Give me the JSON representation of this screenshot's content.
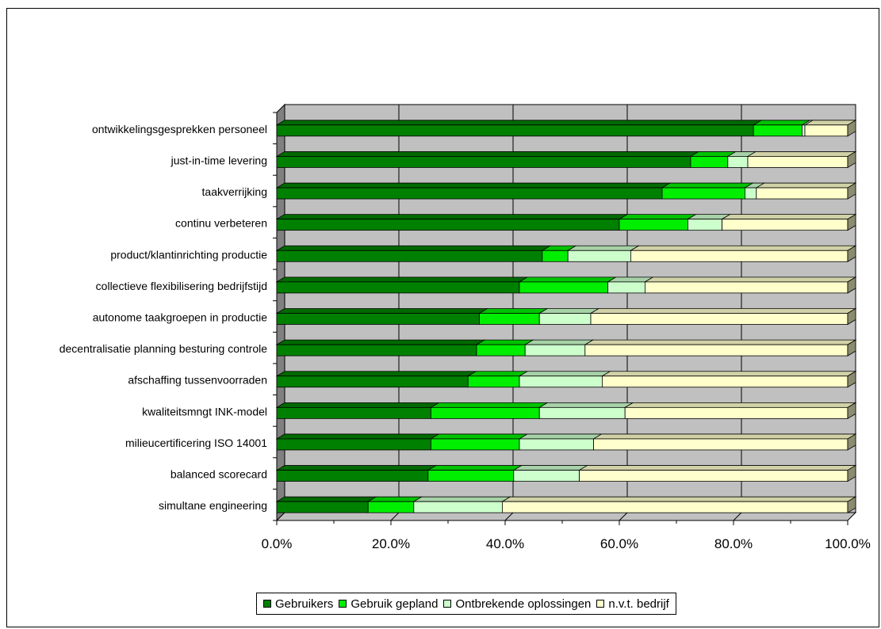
{
  "chart_data": {
    "type": "bar",
    "orientation": "horizontal",
    "stacked": true,
    "percent": true,
    "three_d": true,
    "categories": [
      "ontwikkelingsgesprekken personeel",
      "just-in-time levering",
      "taakverrijking",
      "continu verbeteren",
      "product/klantinrichting productie",
      "collectieve flexibilisering bedrijfstijd",
      "autonome taakgroepen in productie",
      "decentralisatie planning besturing controle",
      "afschaffing tussenvoorraden",
      "kwaliteitsmngt INK-model",
      "milieucertificering ISO 14001",
      "balanced scorecard",
      "simultane engineering"
    ],
    "series": [
      {
        "name": "Gebruikers",
        "color": "#008000",
        "values": [
          83.5,
          72.5,
          67.5,
          60.0,
          46.5,
          42.5,
          35.5,
          35.0,
          33.5,
          27.0,
          27.0,
          26.5,
          16.0
        ]
      },
      {
        "name": "Gebruik gepland",
        "color": "#00ee00",
        "values": [
          8.5,
          6.5,
          14.5,
          12.0,
          4.5,
          15.5,
          10.5,
          8.5,
          9.0,
          19.0,
          15.5,
          15.0,
          8.0
        ]
      },
      {
        "name": "Ontbrekende oplossingen",
        "color": "#ccffcc",
        "values": [
          0.5,
          3.5,
          2.0,
          6.0,
          11.0,
          6.5,
          9.0,
          10.5,
          14.5,
          15.0,
          13.0,
          11.5,
          15.5
        ]
      },
      {
        "name": "n.v.t. bedrijf",
        "color": "#ffffcc",
        "values": [
          7.5,
          17.5,
          16.0,
          22.0,
          38.0,
          35.5,
          45.0,
          46.0,
          43.0,
          39.0,
          44.5,
          47.0,
          60.5
        ]
      }
    ],
    "x_ticks": [
      "0.0%",
      "20.0%",
      "40.0%",
      "60.0%",
      "80.0%",
      "100.0%"
    ],
    "xlim": [
      0,
      100
    ],
    "grid": true,
    "legend_position": "bottom"
  }
}
